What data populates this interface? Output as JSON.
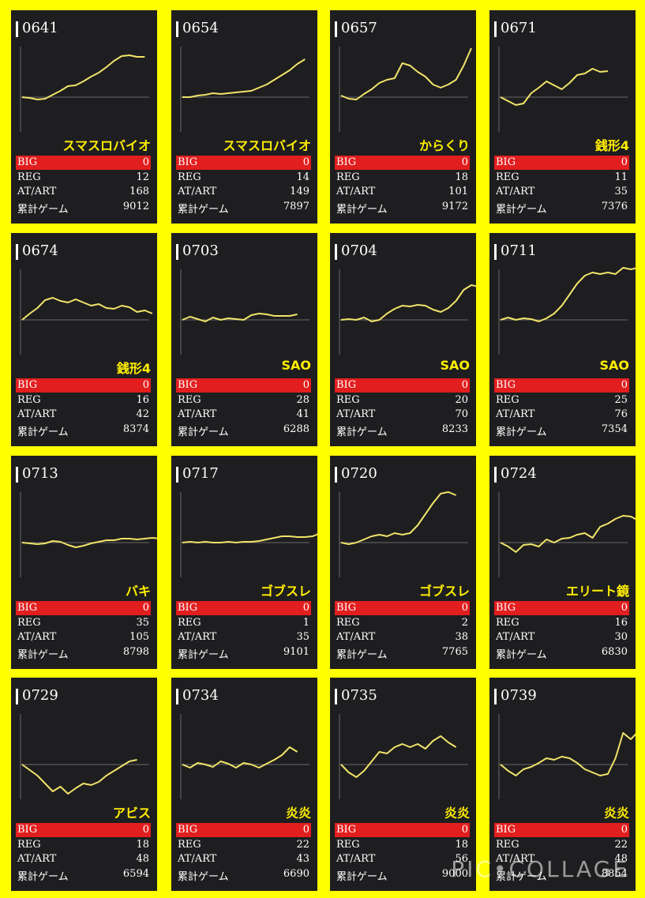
{
  "colors": {
    "background": "#ffff00",
    "card": "#1e1e20",
    "line": "#f1e36a",
    "big_row": "#e21e1e",
    "label_text": "#ffee00"
  },
  "labels": {
    "big": "BIG",
    "reg": "REG",
    "at": "AT/ART",
    "games": "累計ゲーム"
  },
  "watermark": "PIC•COLLAGE",
  "cards": [
    {
      "id": "0641",
      "machine": "スマスロバイオ",
      "big": "0",
      "reg": "12",
      "at": "168",
      "games": "9012",
      "trend": [
        0,
        -1,
        -3,
        -2,
        3,
        8,
        14,
        15,
        20,
        26,
        31,
        38,
        46,
        52,
        53,
        51,
        51
      ]
    },
    {
      "id": "0654",
      "machine": "スマスロバイオ",
      "big": "0",
      "reg": "14",
      "at": "149",
      "games": "7897",
      "trend": [
        0,
        0,
        2,
        3,
        5,
        4,
        5,
        6,
        7,
        8,
        12,
        16,
        22,
        28,
        34,
        42,
        48
      ]
    },
    {
      "id": "0657",
      "machine": "からくり",
      "big": "0",
      "reg": "18",
      "at": "101",
      "games": "9172",
      "trend": [
        2,
        -2,
        -3,
        4,
        10,
        18,
        22,
        24,
        43,
        40,
        32,
        26,
        16,
        12,
        16,
        22,
        40,
        62
      ]
    },
    {
      "id": "0671",
      "machine": "銭形4",
      "big": "0",
      "reg": "11",
      "at": "35",
      "games": "7376",
      "trend": [
        0,
        -5,
        -10,
        -8,
        5,
        12,
        20,
        15,
        10,
        18,
        28,
        30,
        36,
        32,
        33
      ]
    },
    {
      "id": "0674",
      "machine": "銭形4",
      "big": "0",
      "reg": "16",
      "at": "42",
      "games": "8374",
      "trend": [
        0,
        8,
        15,
        25,
        28,
        24,
        22,
        26,
        22,
        18,
        20,
        15,
        14,
        18,
        16,
        10,
        12,
        8
      ]
    },
    {
      "id": "0703",
      "machine": "SAO",
      "big": "0",
      "reg": "28",
      "at": "41",
      "games": "6288",
      "trend": [
        0,
        4,
        1,
        -2,
        3,
        0,
        2,
        1,
        0,
        6,
        8,
        7,
        5,
        5,
        5,
        7
      ]
    },
    {
      "id": "0704",
      "machine": "SAO",
      "big": "0",
      "reg": "20",
      "at": "70",
      "games": "8233",
      "trend": [
        0,
        1,
        0,
        3,
        -2,
        0,
        8,
        14,
        18,
        17,
        19,
        18,
        13,
        10,
        15,
        24,
        38,
        44,
        42,
        38
      ]
    },
    {
      "id": "0711",
      "machine": "SAO",
      "big": "0",
      "reg": "25",
      "at": "76",
      "games": "7354",
      "trend": [
        0,
        3,
        0,
        2,
        1,
        -2,
        2,
        8,
        18,
        32,
        46,
        56,
        60,
        58,
        60,
        58,
        66,
        64,
        66
      ]
    },
    {
      "id": "0713",
      "machine": "バキ",
      "big": "0",
      "reg": "35",
      "at": "105",
      "games": "8798",
      "trend": [
        0,
        -1,
        -2,
        -1,
        2,
        1,
        -3,
        -6,
        -4,
        -1,
        1,
        3,
        3,
        5,
        5,
        4,
        5,
        6,
        5,
        9
      ]
    },
    {
      "id": "0717",
      "machine": "ゴブスレ",
      "big": "0",
      "reg": "1",
      "at": "35",
      "games": "9101",
      "trend": [
        0,
        1,
        0,
        1,
        0,
        0,
        1,
        0,
        1,
        1,
        2,
        4,
        6,
        8,
        8,
        7,
        7,
        8,
        12,
        20
      ]
    },
    {
      "id": "0720",
      "machine": "ゴブスレ",
      "big": "0",
      "reg": "2",
      "at": "38",
      "games": "7765",
      "trend": [
        0,
        -2,
        0,
        4,
        8,
        10,
        8,
        12,
        10,
        12,
        22,
        36,
        50,
        62,
        64,
        60
      ]
    },
    {
      "id": "0724",
      "machine": "エリート鏡",
      "big": "0",
      "reg": "16",
      "at": "30",
      "games": "6830",
      "trend": [
        0,
        -5,
        -12,
        -3,
        -2,
        -5,
        4,
        0,
        5,
        6,
        10,
        12,
        6,
        20,
        24,
        30,
        34,
        33,
        28
      ]
    },
    {
      "id": "0729",
      "machine": "アビス",
      "big": "0",
      "reg": "18",
      "at": "48",
      "games": "6594",
      "trend": [
        0,
        -7,
        -14,
        -24,
        -34,
        -28,
        -37,
        -30,
        -24,
        -26,
        -22,
        -14,
        -8,
        -2,
        4,
        6
      ]
    },
    {
      "id": "0734",
      "machine": "炎炎",
      "big": "0",
      "reg": "22",
      "at": "43",
      "games": "6690",
      "trend": [
        0,
        -4,
        2,
        0,
        -3,
        4,
        1,
        -4,
        2,
        0,
        -4,
        1,
        6,
        12,
        22,
        16
      ]
    },
    {
      "id": "0735",
      "machine": "炎炎",
      "big": "0",
      "reg": "18",
      "at": "56",
      "games": "9000",
      "trend": [
        0,
        -10,
        -16,
        -8,
        4,
        16,
        14,
        22,
        26,
        22,
        26,
        20,
        30,
        36,
        28,
        22
      ]
    },
    {
      "id": "0739",
      "machine": "炎炎",
      "big": "0",
      "reg": "22",
      "at": "48",
      "games": "8854",
      "trend": [
        0,
        -8,
        -14,
        -6,
        -3,
        2,
        8,
        6,
        10,
        8,
        2,
        -6,
        -10,
        -14,
        -12,
        8,
        40,
        32,
        42
      ]
    }
  ]
}
